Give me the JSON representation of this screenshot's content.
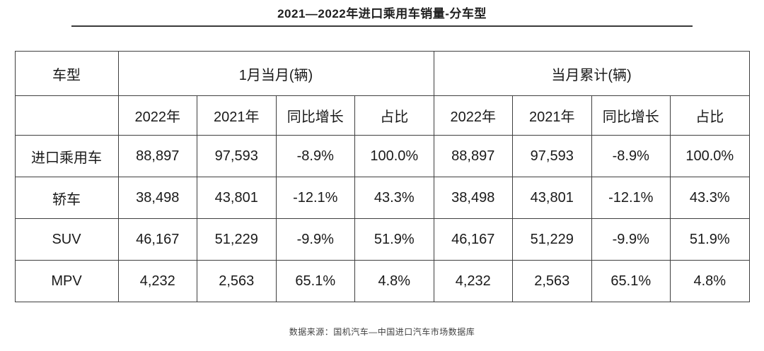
{
  "page": {
    "title": "2021—2022年进口乘用车销量-分车型",
    "source": "数据来源：国机汽车—中国进口汽车市场数据库"
  },
  "table": {
    "col_header": "车型",
    "group_headers": [
      "1月当月(辆)",
      "当月累计(辆)"
    ],
    "sub_headers": [
      "2022年",
      "2021年",
      "同比增长",
      "占比"
    ],
    "rows": [
      {
        "label": "进口乘用车",
        "cells": [
          "88,897",
          "97,593",
          "-8.9%",
          "100.0%",
          "88,897",
          "97,593",
          "-8.9%",
          "100.0%"
        ]
      },
      {
        "label": "轿车",
        "cells": [
          "38,498",
          "43,801",
          "-12.1%",
          "43.3%",
          "38,498",
          "43,801",
          "-12.1%",
          "43.3%"
        ]
      },
      {
        "label": "SUV",
        "cells": [
          "46,167",
          "51,229",
          "-9.9%",
          "51.9%",
          "46,167",
          "51,229",
          "-9.9%",
          "51.9%"
        ]
      },
      {
        "label": "MPV",
        "cells": [
          "4,232",
          "2,563",
          "65.1%",
          "4.8%",
          "4,232",
          "2,563",
          "65.1%",
          "4.8%"
        ]
      }
    ]
  },
  "chart_data": {
    "type": "table",
    "title": "2021—2022年进口乘用车销量-分车型",
    "source": "数据来源：国机汽车—中国进口汽车市场数据库",
    "row_header": "车型",
    "column_groups": [
      {
        "label": "1月当月(辆)",
        "columns": [
          "2022年",
          "2021年",
          "同比增长",
          "占比"
        ]
      },
      {
        "label": "当月累计(辆)",
        "columns": [
          "2022年",
          "2021年",
          "同比增长",
          "占比"
        ]
      }
    ],
    "rows": [
      {
        "vehicle_type": "进口乘用车",
        "month_current": {
          "y2022": 88897,
          "y2021": 97593,
          "yoy_growth": "-8.9%",
          "share": "100.0%"
        },
        "month_cumulative": {
          "y2022": 88897,
          "y2021": 97593,
          "yoy_growth": "-8.9%",
          "share": "100.0%"
        }
      },
      {
        "vehicle_type": "轿车",
        "month_current": {
          "y2022": 38498,
          "y2021": 43801,
          "yoy_growth": "-12.1%",
          "share": "43.3%"
        },
        "month_cumulative": {
          "y2022": 38498,
          "y2021": 43801,
          "yoy_growth": "-12.1%",
          "share": "43.3%"
        }
      },
      {
        "vehicle_type": "SUV",
        "month_current": {
          "y2022": 46167,
          "y2021": 51229,
          "yoy_growth": "-9.9%",
          "share": "51.9%"
        },
        "month_cumulative": {
          "y2022": 46167,
          "y2021": 51229,
          "yoy_growth": "-9.9%",
          "share": "51.9%"
        }
      },
      {
        "vehicle_type": "MPV",
        "month_current": {
          "y2022": 4232,
          "y2021": 2563,
          "yoy_growth": "65.1%",
          "share": "4.8%"
        },
        "month_cumulative": {
          "y2022": 4232,
          "y2021": 2563,
          "yoy_growth": "65.1%",
          "share": "4.8%"
        }
      }
    ]
  },
  "colors": {
    "background": "#ffffff",
    "text": "#1a1a1a",
    "border": "#3f3f3f",
    "title_rule": "#3a3a3a",
    "source_text": "#404040"
  }
}
